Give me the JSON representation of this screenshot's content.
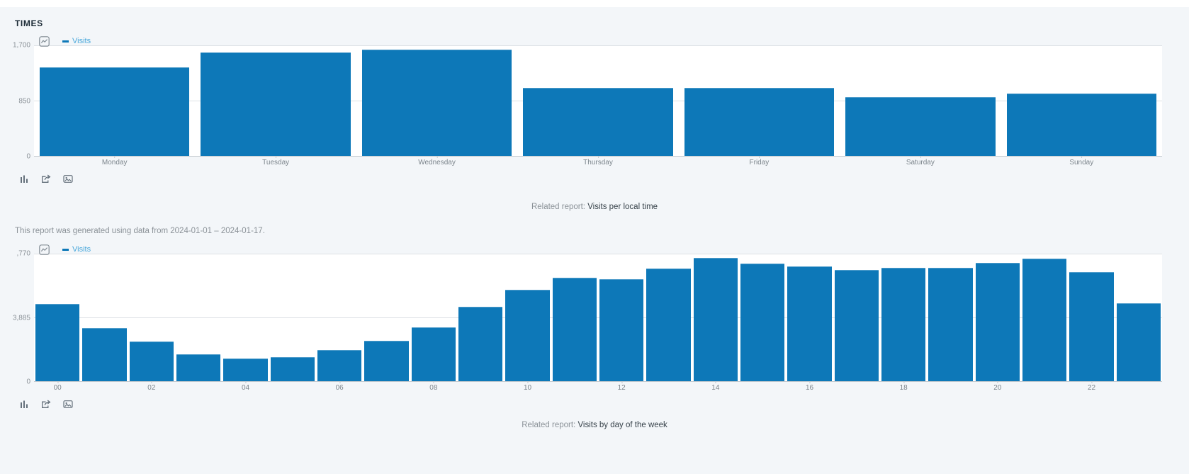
{
  "page": {
    "title": "TIMES",
    "note": "This report was generated using data from 2024-01-01 – 2024-01-17."
  },
  "colors": {
    "bar_blue": "#0d78b8",
    "legend_text_blue": "#4aa8db",
    "page_background": "#f3f6f9",
    "plot_background": "#ffffff",
    "tick_text": "#8b9298",
    "icon_gray": "#64707b"
  },
  "toolbar": {
    "icons": [
      "bar-chart-icon",
      "export-icon",
      "image-export-icon"
    ]
  },
  "related": [
    {
      "prefix": "Related report: ",
      "link": "Visits per local time"
    },
    {
      "prefix": "Related report: ",
      "link": "Visits by day of the week"
    }
  ],
  "chart_data": [
    {
      "type": "bar",
      "legend": "Visits",
      "title": "",
      "xlabel": "",
      "ylabel": "",
      "categories": [
        "Monday",
        "Tuesday",
        "Wednesday",
        "Thursday",
        "Friday",
        "Saturday",
        "Sunday"
      ],
      "values": [
        1360,
        1590,
        1635,
        1045,
        1045,
        905,
        960
      ],
      "ylim": [
        0,
        1700
      ],
      "y_tick_labels": [
        "0",
        "850",
        "1,700"
      ],
      "grid": "horizontal",
      "legend_position": "top-left",
      "bar_color": "#0d78b8"
    },
    {
      "type": "bar",
      "legend": "Visits",
      "title": "",
      "xlabel": "",
      "ylabel": "",
      "categories": [
        "00",
        "01",
        "02",
        "03",
        "04",
        "05",
        "06",
        "07",
        "08",
        "09",
        "10",
        "11",
        "12",
        "13",
        "14",
        "15",
        "16",
        "17",
        "18",
        "19",
        "20",
        "21",
        "22",
        "23"
      ],
      "x_tick_labels": [
        "00",
        "02",
        "04",
        "06",
        "08",
        "10",
        "12",
        "14",
        "16",
        "18",
        "20",
        "22"
      ],
      "values": [
        4690,
        3225,
        2420,
        1640,
        1365,
        1455,
        1890,
        2480,
        3300,
        4530,
        5565,
        6290,
        6200,
        6845,
        7510,
        7155,
        7000,
        6770,
        6920,
        6920,
        7200,
        7460,
        6660,
        4765
      ],
      "ylim": [
        0,
        7770
      ],
      "y_tick_labels": [
        "0",
        "3,885",
        ",770"
      ],
      "grid": "horizontal",
      "legend_position": "top-left",
      "bar_color": "#0d78b8"
    }
  ]
}
